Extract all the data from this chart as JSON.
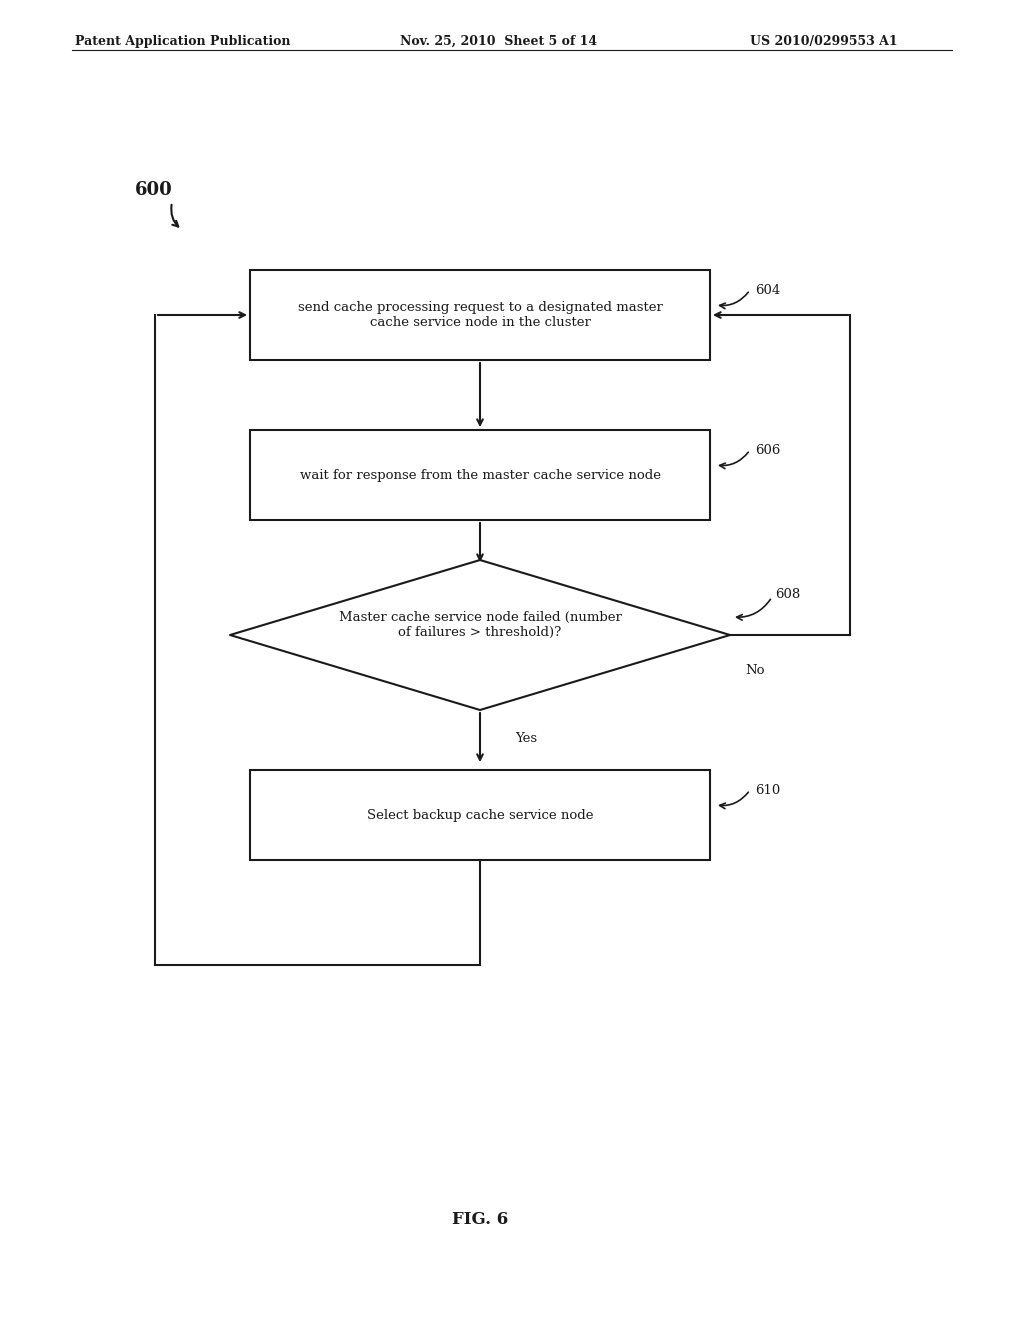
{
  "bg_color": "#ffffff",
  "header_left": "Patent Application Publication",
  "header_mid": "Nov. 25, 2010  Sheet 5 of 14",
  "header_right": "US 2010/0299553 A1",
  "fig_label": "FIG. 6",
  "diagram_label": "600",
  "box604_text": "send cache processing request to a designated master\ncache service node in the cluster",
  "box604_label": "604",
  "box606_text": "wait for response from the master cache service node",
  "box606_label": "606",
  "diamond608_text": "Master cache service node failed (number\nof failures > threshold)?",
  "diamond608_label": "608",
  "box610_text": "Select backup cache service node",
  "box610_label": "610",
  "yes_label": "Yes",
  "no_label": "No"
}
